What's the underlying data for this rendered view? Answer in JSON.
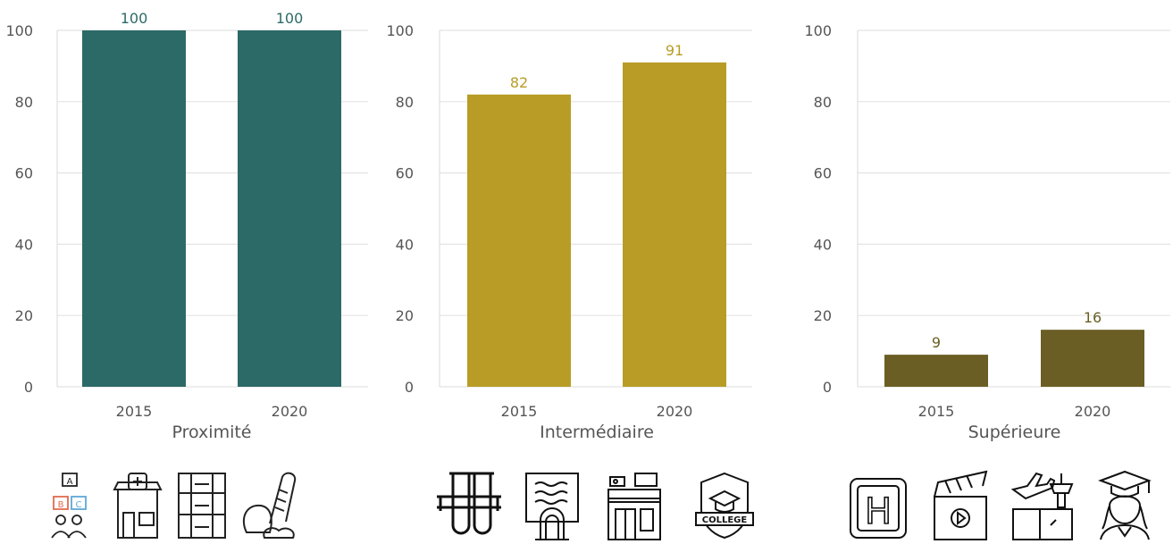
{
  "chart_data": [
    {
      "type": "bar",
      "title": "Proximité",
      "categories": [
        "2015",
        "2020"
      ],
      "values": [
        100,
        100
      ],
      "ylim": [
        0,
        100
      ],
      "yticks": [
        0,
        20,
        40,
        60,
        80,
        100
      ],
      "grid": true,
      "color": "#2c6a67",
      "label_color": "#2c6a67",
      "icons": [
        "abc-blocks-icon",
        "pharmacy-store-icon",
        "shop-shelf-icon",
        "bakery-bread-icon"
      ]
    },
    {
      "type": "bar",
      "title": "Intermédiaire",
      "categories": [
        "2015",
        "2020"
      ],
      "values": [
        82,
        91
      ],
      "ylim": [
        0,
        100
      ],
      "yticks": [
        0,
        20,
        40,
        60,
        80,
        100
      ],
      "grid": true,
      "color": "#b89c26",
      "label_color": "#b89c26",
      "icons": [
        "test-tubes-icon",
        "library-book-icon",
        "supermarket-icon",
        "college-badge-icon"
      ],
      "icon_texts": {
        "college": "COLLEGE"
      }
    },
    {
      "type": "bar",
      "title": "Supérieure",
      "categories": [
        "2015",
        "2020"
      ],
      "values": [
        9,
        16
      ],
      "ylim": [
        0,
        100
      ],
      "yticks": [
        0,
        20,
        40,
        60,
        80,
        100
      ],
      "grid": true,
      "color": "#6a5e24",
      "label_color": "#6a5e24",
      "icons": [
        "hospital-sign-icon",
        "cinema-clapper-icon",
        "airport-icon",
        "graduate-icon"
      ],
      "icon_texts": {
        "hospital": "H"
      }
    }
  ]
}
